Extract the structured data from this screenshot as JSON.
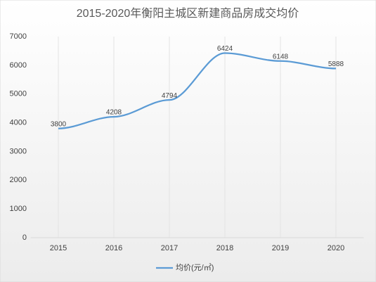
{
  "chart_data": {
    "type": "line",
    "title": "2015-2020年衡阳主城区新建商品房成交均价",
    "categories": [
      "2015",
      "2016",
      "2017",
      "2018",
      "2019",
      "2020"
    ],
    "series": [
      {
        "name": "均价(元/㎡)",
        "color": "#5b9bd5",
        "values": [
          3800,
          4208,
          4794,
          6424,
          6148,
          5888
        ]
      }
    ],
    "ylim": [
      0,
      7000
    ],
    "yticks": [
      0,
      1000,
      2000,
      3000,
      4000,
      5000,
      6000,
      7000
    ],
    "legend": "bottom"
  }
}
